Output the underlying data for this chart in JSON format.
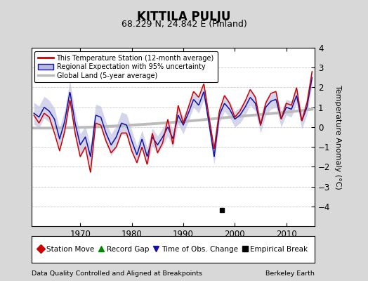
{
  "title": "KITTILA PULJU",
  "subtitle": "68.229 N, 24.842 E (Finland)",
  "ylabel": "Temperature Anomaly (°C)",
  "xlabel_bottom_left": "Data Quality Controlled and Aligned at Breakpoints",
  "xlabel_bottom_right": "Berkeley Earth",
  "ylim": [
    -5,
    4
  ],
  "xlim": [
    1960.5,
    2015.5
  ],
  "yticks": [
    -4,
    -3,
    -2,
    -1,
    0,
    1,
    2,
    3,
    4
  ],
  "xticks": [
    1970,
    1980,
    1990,
    2000,
    2010
  ],
  "bg_color": "#d8d8d8",
  "plot_bg_color": "#ffffff",
  "red_color": "#cc0000",
  "blue_color": "#1111aa",
  "blue_fill_color": "#b8b8dd",
  "gray_color": "#bbbbbb",
  "empirical_break_x": 1997.5,
  "empirical_break_y": -4.2,
  "legend_items": [
    {
      "label": "This Temperature Station (12-month average)",
      "color": "#cc0000",
      "type": "line"
    },
    {
      "label": "Regional Expectation with 95% uncertainty",
      "color": "#1111aa",
      "type": "band"
    },
    {
      "label": "Global Land (5-year average)",
      "color": "#bbbbbb",
      "type": "line"
    }
  ],
  "bottom_legend": [
    {
      "label": "Station Move",
      "color": "#cc0000",
      "marker": "D"
    },
    {
      "label": "Record Gap",
      "color": "#008800",
      "marker": "^"
    },
    {
      "label": "Time of Obs. Change",
      "color": "#1111aa",
      "marker": "v"
    },
    {
      "label": "Empirical Break",
      "color": "#000000",
      "marker": "s"
    }
  ],
  "regional_years": [
    1961,
    1962,
    1963,
    1964,
    1965,
    1966,
    1967,
    1968,
    1969,
    1970,
    1971,
    1972,
    1973,
    1974,
    1975,
    1976,
    1977,
    1978,
    1979,
    1980,
    1981,
    1982,
    1983,
    1984,
    1985,
    1986,
    1987,
    1988,
    1989,
    1990,
    1991,
    1992,
    1993,
    1994,
    1995,
    1996,
    1997,
    1998,
    1999,
    2000,
    2001,
    2002,
    2003,
    2004,
    2005,
    2006,
    2007,
    2008,
    2009,
    2010,
    2011,
    2012,
    2013,
    2014,
    2015
  ],
  "blue_vals": [
    0.7,
    0.5,
    1.0,
    0.8,
    0.4,
    -0.6,
    0.3,
    1.8,
    0.2,
    -0.9,
    -0.5,
    -1.5,
    0.6,
    0.5,
    -0.3,
    -0.9,
    -0.5,
    0.2,
    0.1,
    -0.7,
    -1.4,
    -0.6,
    -1.5,
    -0.5,
    -0.9,
    -0.5,
    0.0,
    -0.6,
    0.6,
    0.1,
    0.7,
    1.4,
    1.1,
    1.8,
    0.2,
    -1.5,
    0.6,
    1.2,
    0.9,
    0.4,
    0.6,
    1.0,
    1.5,
    1.2,
    0.1,
    1.0,
    1.3,
    1.4,
    0.4,
    1.0,
    0.9,
    1.6,
    0.3,
    1.0,
    2.5
  ],
  "red_vals": [
    0.6,
    0.2,
    0.7,
    0.5,
    -0.3,
    -1.2,
    -0.2,
    1.4,
    -0.3,
    -1.5,
    -1.0,
    -2.3,
    0.2,
    0.1,
    -0.7,
    -1.3,
    -1.0,
    -0.3,
    -0.3,
    -1.2,
    -1.8,
    -1.0,
    -1.9,
    -0.3,
    -1.3,
    -0.8,
    0.4,
    -0.9,
    1.1,
    0.2,
    1.0,
    1.8,
    1.5,
    2.2,
    0.5,
    -1.1,
    0.8,
    1.6,
    1.2,
    0.5,
    0.8,
    1.3,
    1.9,
    1.5,
    0.1,
    1.2,
    1.7,
    1.8,
    0.4,
    1.2,
    1.1,
    2.0,
    0.3,
    1.2,
    2.8
  ],
  "blue_unc": [
    0.55,
    0.55,
    0.55,
    0.55,
    0.55,
    0.55,
    0.55,
    0.55,
    0.55,
    0.55,
    0.55,
    0.55,
    0.55,
    0.55,
    0.55,
    0.55,
    0.55,
    0.55,
    0.55,
    0.55,
    0.45,
    0.45,
    0.45,
    0.45,
    0.45,
    0.45,
    0.45,
    0.45,
    0.45,
    0.45,
    0.4,
    0.4,
    0.4,
    0.4,
    0.4,
    0.4,
    0.4,
    0.4,
    0.4,
    0.4,
    0.4,
    0.4,
    0.4,
    0.4,
    0.4,
    0.4,
    0.4,
    0.4,
    0.4,
    0.4,
    0.4,
    0.4,
    0.4,
    0.4,
    0.4
  ],
  "global_years": [
    1961,
    1970,
    1980,
    1990,
    2000,
    2010,
    2015
  ],
  "global_vals": [
    -0.05,
    -0.02,
    0.1,
    0.28,
    0.52,
    0.75,
    0.9
  ]
}
